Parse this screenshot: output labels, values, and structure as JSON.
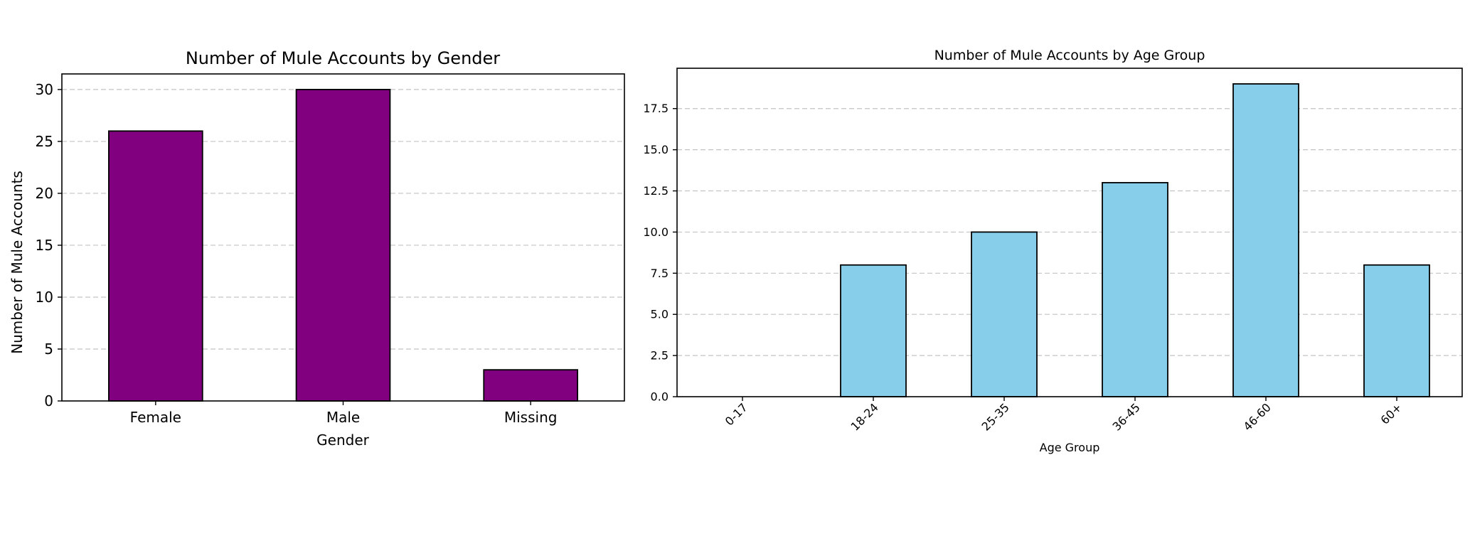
{
  "chart_data": [
    {
      "type": "bar",
      "title": "Number of Mule Accounts by Gender",
      "xlabel": "Gender",
      "ylabel": "Number of Mule Accounts",
      "categories": [
        "Female",
        "Male",
        "Missing"
      ],
      "values": [
        26,
        30,
        3
      ],
      "ylim": [
        0,
        31.5
      ],
      "yticks": [
        0,
        5,
        10,
        15,
        20,
        25,
        30
      ],
      "ytick_labels": [
        "0",
        "5",
        "10",
        "15",
        "20",
        "25",
        "30"
      ],
      "bar_color": "#800080",
      "edge_color": "#000000",
      "grid": "y-dashed",
      "xtick_rotation": 0
    },
    {
      "type": "bar",
      "title": "Number of Mule Accounts by Age Group",
      "xlabel": "Age Group",
      "ylabel": "",
      "categories": [
        "0-17",
        "18-24",
        "25-35",
        "36-45",
        "46-60",
        "60+"
      ],
      "values": [
        0,
        8,
        10,
        13,
        19,
        8
      ],
      "ylim": [
        0,
        19.95
      ],
      "yticks": [
        0,
        2.5,
        5,
        7.5,
        10,
        12.5,
        15,
        17.5
      ],
      "ytick_labels": [
        "0.0",
        "2.5",
        "5.0",
        "7.5",
        "10.0",
        "12.5",
        "15.0",
        "17.5"
      ],
      "bar_color": "#87CEEB",
      "edge_color": "#000000",
      "grid": "y-dashed",
      "xtick_rotation": 45
    }
  ]
}
